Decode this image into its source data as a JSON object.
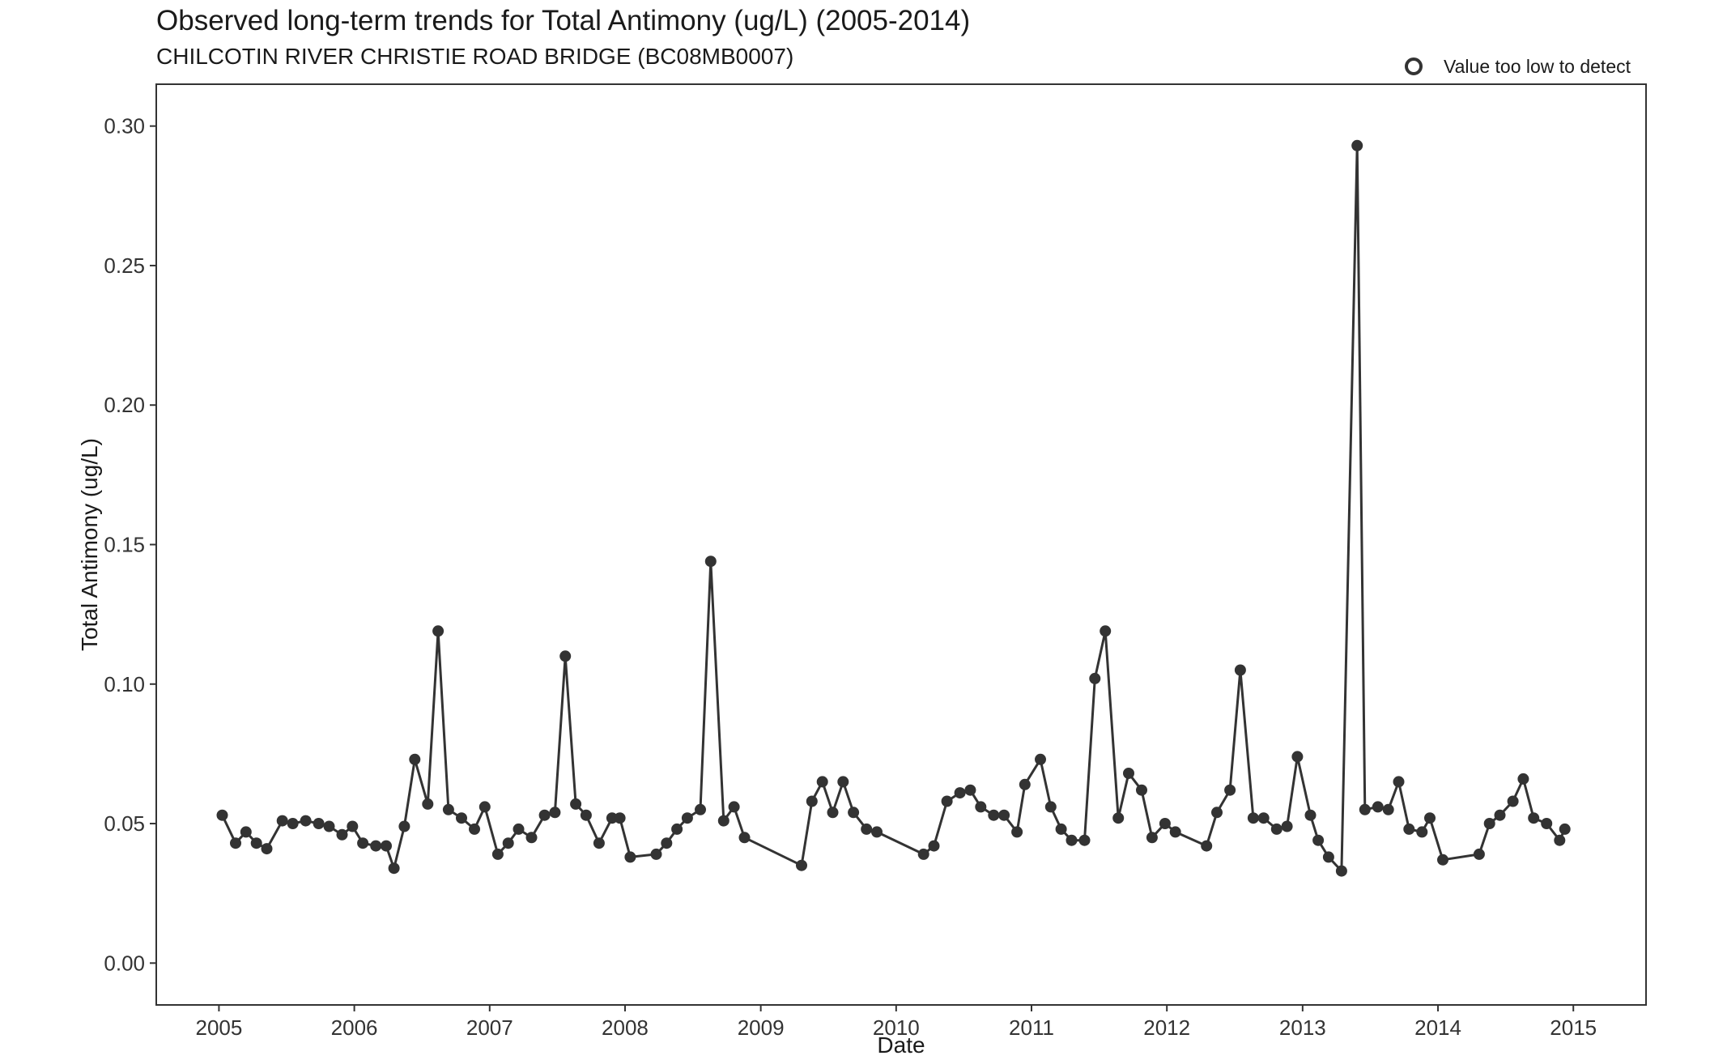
{
  "chart_data": {
    "type": "line",
    "title": "Observed long-term trends for Total Antimony (ug/L) (2005-2014)",
    "subtitle": "CHILCOTIN RIVER CHRISTIE ROAD BRIDGE (BC08MB0007)",
    "xlabel": "Date",
    "ylabel": "Total Antimony (ug/L)",
    "xlim": [
      "2004-07-16",
      "2015-07-16"
    ],
    "ylim": [
      -0.015,
      0.315
    ],
    "x_ticks": [
      "2005",
      "2006",
      "2007",
      "2008",
      "2009",
      "2010",
      "2011",
      "2012",
      "2013",
      "2014",
      "2015"
    ],
    "y_ticks": [
      "0.00",
      "0.05",
      "0.10",
      "0.15",
      "0.20",
      "0.25",
      "0.30"
    ],
    "legend": {
      "position": "top-right",
      "entries": [
        {
          "label": "Value too low to detect",
          "marker": "open-circle"
        }
      ]
    },
    "grid": false,
    "colors": {
      "line": "#333333",
      "point": "#333333",
      "axis": "#333333"
    },
    "series": [
      {
        "points": [
          [
            "2005-01-10",
            0.053
          ],
          [
            "2005-02-15",
            0.043
          ],
          [
            "2005-03-15",
            0.047
          ],
          [
            "2005-04-12",
            0.043
          ],
          [
            "2005-05-10",
            0.041
          ],
          [
            "2005-06-21",
            0.051
          ],
          [
            "2005-07-19",
            0.05
          ],
          [
            "2005-08-23",
            0.051
          ],
          [
            "2005-09-27",
            0.05
          ],
          [
            "2005-10-25",
            0.049
          ],
          [
            "2005-11-29",
            0.046
          ],
          [
            "2005-12-27",
            0.049
          ],
          [
            "2006-01-24",
            0.043
          ],
          [
            "2006-02-28",
            0.042
          ],
          [
            "2006-03-28",
            0.042
          ],
          [
            "2006-04-18",
            0.034
          ],
          [
            "2006-05-16",
            0.049
          ],
          [
            "2006-06-13",
            0.073
          ],
          [
            "2006-07-18",
            0.057
          ],
          [
            "2006-08-15",
            0.119
          ],
          [
            "2006-09-12",
            0.055
          ],
          [
            "2006-10-17",
            0.052
          ],
          [
            "2006-11-21",
            0.048
          ],
          [
            "2006-12-19",
            0.056
          ],
          [
            "2007-01-23",
            0.039
          ],
          [
            "2007-02-20",
            0.043
          ],
          [
            "2007-03-20",
            0.048
          ],
          [
            "2007-04-24",
            0.045
          ],
          [
            "2007-05-29",
            0.053
          ],
          [
            "2007-06-26",
            0.054
          ],
          [
            "2007-07-24",
            0.11
          ],
          [
            "2007-08-21",
            0.057
          ],
          [
            "2007-09-18",
            0.053
          ],
          [
            "2007-10-23",
            0.043
          ],
          [
            "2007-11-27",
            0.052
          ],
          [
            "2007-12-18",
            0.052
          ],
          [
            "2008-01-15",
            0.038
          ],
          [
            "2008-03-25",
            0.039
          ],
          [
            "2008-04-22",
            0.043
          ],
          [
            "2008-05-20",
            0.048
          ],
          [
            "2008-06-17",
            0.052
          ],
          [
            "2008-07-22",
            0.055
          ],
          [
            "2008-08-19",
            0.144
          ],
          [
            "2008-09-23",
            0.051
          ],
          [
            "2008-10-21",
            0.056
          ],
          [
            "2008-11-18",
            0.045
          ],
          [
            "2009-04-21",
            0.035
          ],
          [
            "2009-05-19",
            0.058
          ],
          [
            "2009-06-16",
            0.065
          ],
          [
            "2009-07-14",
            0.054
          ],
          [
            "2009-08-11",
            0.065
          ],
          [
            "2009-09-08",
            0.054
          ],
          [
            "2009-10-13",
            0.048
          ],
          [
            "2009-11-10",
            0.047
          ],
          [
            "2010-03-16",
            0.039
          ],
          [
            "2010-04-13",
            0.042
          ],
          [
            "2010-05-18",
            0.058
          ],
          [
            "2010-06-22",
            0.061
          ],
          [
            "2010-07-20",
            0.062
          ],
          [
            "2010-08-17",
            0.056
          ],
          [
            "2010-09-21",
            0.053
          ],
          [
            "2010-10-19",
            0.053
          ],
          [
            "2010-11-23",
            0.047
          ],
          [
            "2010-12-14",
            0.064
          ],
          [
            "2011-01-25",
            0.073
          ],
          [
            "2011-02-22",
            0.056
          ],
          [
            "2011-03-22",
            0.048
          ],
          [
            "2011-04-19",
            0.044
          ],
          [
            "2011-05-24",
            0.044
          ],
          [
            "2011-06-21",
            0.102
          ],
          [
            "2011-07-19",
            0.119
          ],
          [
            "2011-08-23",
            0.052
          ],
          [
            "2011-09-20",
            0.068
          ],
          [
            "2011-10-25",
            0.062
          ],
          [
            "2011-11-22",
            0.045
          ],
          [
            "2011-12-27",
            0.05
          ],
          [
            "2012-01-24",
            0.047
          ],
          [
            "2012-04-17",
            0.042
          ],
          [
            "2012-05-15",
            0.054
          ],
          [
            "2012-06-19",
            0.062
          ],
          [
            "2012-07-17",
            0.105
          ],
          [
            "2012-08-21",
            0.052
          ],
          [
            "2012-09-18",
            0.052
          ],
          [
            "2012-10-23",
            0.048
          ],
          [
            "2012-11-20",
            0.049
          ],
          [
            "2012-12-18",
            0.074
          ],
          [
            "2013-01-22",
            0.053
          ],
          [
            "2013-02-12",
            0.044
          ],
          [
            "2013-03-12",
            0.038
          ],
          [
            "2013-04-16",
            0.033
          ],
          [
            "2013-05-28",
            0.293
          ],
          [
            "2013-06-18",
            0.055
          ],
          [
            "2013-07-23",
            0.056
          ],
          [
            "2013-08-20",
            0.055
          ],
          [
            "2013-09-17",
            0.065
          ],
          [
            "2013-10-15",
            0.048
          ],
          [
            "2013-11-19",
            0.047
          ],
          [
            "2013-12-10",
            0.052
          ],
          [
            "2014-01-14",
            0.037
          ],
          [
            "2014-04-22",
            0.039
          ],
          [
            "2014-05-20",
            0.05
          ],
          [
            "2014-06-17",
            0.053
          ],
          [
            "2014-07-22",
            0.058
          ],
          [
            "2014-08-19",
            0.066
          ],
          [
            "2014-09-16",
            0.052
          ],
          [
            "2014-10-21",
            0.05
          ],
          [
            "2014-11-25",
            0.044
          ],
          [
            "2014-12-09",
            0.048
          ]
        ]
      }
    ]
  }
}
